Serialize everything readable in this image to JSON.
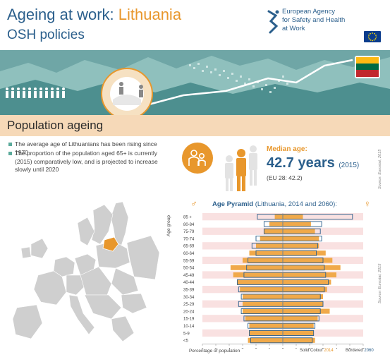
{
  "header": {
    "title_prefix": "Ageing at work: ",
    "country": "Lithuania",
    "subtitle": "OSH policies",
    "agency_line1": "European Agency",
    "agency_line2": "for Safety and Health",
    "agency_line3": "at Work"
  },
  "section": {
    "title": "Population ageing"
  },
  "bullets": [
    "The average age of Lithuanians has been rising since 1970",
    "The proportion of the population aged 65+ is currently (2015) comparatively low, and is projected to increase slowly until 2020"
  ],
  "median": {
    "label": "Median age:",
    "value": "42.7 years",
    "year": "(2015)",
    "eu": "(EU 28: 42.2)",
    "source": "Source: Eurostat, 2015"
  },
  "pyramid": {
    "title": "Age Pyramid",
    "title_sub": "(Lithuania, 2014 and 2060):",
    "male_symbol": "♂",
    "female_symbol": "♀",
    "age_group_label": "Age group",
    "x_axis_title": "Percentage of population",
    "legend_solid": "Solid Colour",
    "legend_solid_year": "2014",
    "legend_bordered": "Bordered",
    "legend_bordered_year": "2060",
    "source": "Source: Eurostat, 2015"
  },
  "colors": {
    "brand_blue": "#2b5f8c",
    "accent_orange": "#e8972c",
    "teal": "#5aaa9b",
    "light_orange": "#f6d9b8",
    "bar_2014": "#f0a94a",
    "bar_2060_border": "#2b5f8c",
    "highlight_row": "#f9e1e1"
  },
  "chart_data": {
    "type": "bar",
    "title": "Age Pyramid",
    "subtitle": "(Lithuania, 2014 and 2060):",
    "xlabel": "Percentage of population",
    "ylabel": "Age group",
    "categories": [
      "85 +",
      "80-84",
      "75-79",
      "70-74",
      "65-69",
      "60-64",
      "55-59",
      "50-54",
      "45-49",
      "40-44",
      "35-39",
      "30-34",
      "25-29",
      "20-24",
      "15-19",
      "10-14",
      "5-9",
      "<5"
    ],
    "xlim": [
      -6,
      6
    ],
    "x_ticks": [
      6,
      5,
      4,
      3,
      2,
      1,
      0,
      1,
      2,
      3,
      4,
      5,
      6
    ],
    "series": [
      {
        "name": "2014",
        "side": "male",
        "values": [
          0.6,
          1.0,
          1.4,
          1.7,
          2.0,
          2.5,
          3.0,
          3.9,
          3.7,
          3.4,
          3.2,
          3.0,
          3.0,
          3.0,
          2.8,
          2.5,
          2.5,
          2.6
        ]
      },
      {
        "name": "2014",
        "side": "female",
        "values": [
          1.5,
          2.1,
          2.4,
          2.7,
          2.7,
          3.2,
          3.7,
          4.3,
          4.0,
          3.6,
          3.3,
          3.0,
          3.0,
          3.5,
          2.6,
          2.3,
          2.3,
          2.4
        ]
      },
      {
        "name": "2060",
        "side": "male",
        "values": [
          1.9,
          1.4,
          1.4,
          2.0,
          2.3,
          2.0,
          2.6,
          2.7,
          2.9,
          3.4,
          3.3,
          3.1,
          3.3,
          3.1,
          2.9,
          2.6,
          2.5,
          2.4
        ]
      },
      {
        "name": "2060",
        "side": "female",
        "values": [
          5.2,
          2.9,
          2.8,
          2.9,
          2.6,
          2.5,
          3.0,
          3.1,
          3.2,
          3.4,
          3.1,
          2.8,
          3.0,
          2.8,
          2.7,
          2.4,
          2.3,
          2.2
        ]
      }
    ]
  }
}
